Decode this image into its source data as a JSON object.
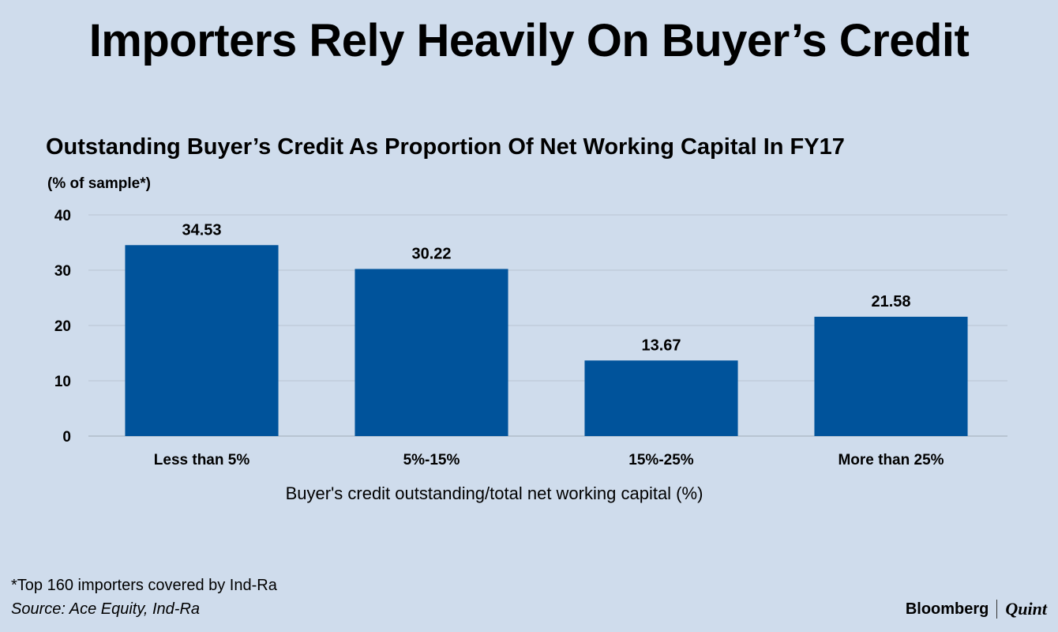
{
  "headline": "Importers Rely Heavily On Buyer’s Credit",
  "chart_data": {
    "type": "bar",
    "title": "Outstanding Buyer’s Credit As Proportion Of Net Working Capital In FY17",
    "ylabel": "(% of sample*)",
    "xlabel": "Buyer's credit outstanding/total net working capital (%)",
    "categories": [
      "Less than 5%",
      "5%-15%",
      "15%-25%",
      "More than 25%"
    ],
    "values": [
      34.53,
      30.22,
      13.67,
      21.58
    ],
    "value_labels": [
      "34.53",
      "30.22",
      "13.67",
      "21.58"
    ],
    "ylim": [
      0,
      40
    ],
    "yticks": [
      0,
      10,
      20,
      30,
      40
    ],
    "grid": true,
    "bar_color": "#00539b"
  },
  "footer": {
    "footnote": "*Top 160 importers covered by Ind-Ra",
    "source": "Source: Ace Equity, Ind-Ra",
    "brand_left": "Bloomberg",
    "brand_right": "Quint"
  },
  "colors": {
    "background": "#cfdcec",
    "gridline": "#b8c4d2",
    "bar": "#00539b"
  }
}
